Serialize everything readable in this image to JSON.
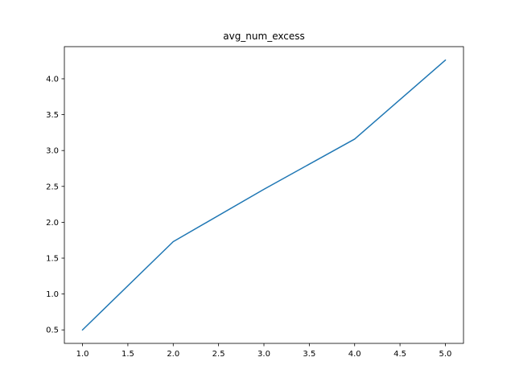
{
  "chart_data": {
    "type": "line",
    "title": "avg_num_excess",
    "xlabel": "",
    "ylabel": "",
    "x": [
      1.0,
      2.0,
      3.0,
      4.0,
      5.0
    ],
    "series": [
      {
        "values": [
          0.5,
          1.73,
          2.46,
          3.16,
          4.26
        ],
        "color": "#1f77b4"
      }
    ],
    "xlim": [
      0.8,
      5.2
    ],
    "ylim": [
      0.312,
      4.448
    ],
    "xticks": [
      1.0,
      1.5,
      2.0,
      2.5,
      3.0,
      3.5,
      4.0,
      4.5,
      5.0
    ],
    "xtick_labels": [
      "1.0",
      "1.5",
      "2.0",
      "2.5",
      "3.0",
      "3.5",
      "4.0",
      "4.5",
      "5.0"
    ],
    "yticks": [
      0.5,
      1.0,
      1.5,
      2.0,
      2.5,
      3.0,
      3.5,
      4.0
    ],
    "ytick_labels": [
      "0.5",
      "1.0",
      "1.5",
      "2.0",
      "2.5",
      "3.0",
      "3.5",
      "4.0"
    ],
    "grid": false,
    "legend": "none"
  }
}
